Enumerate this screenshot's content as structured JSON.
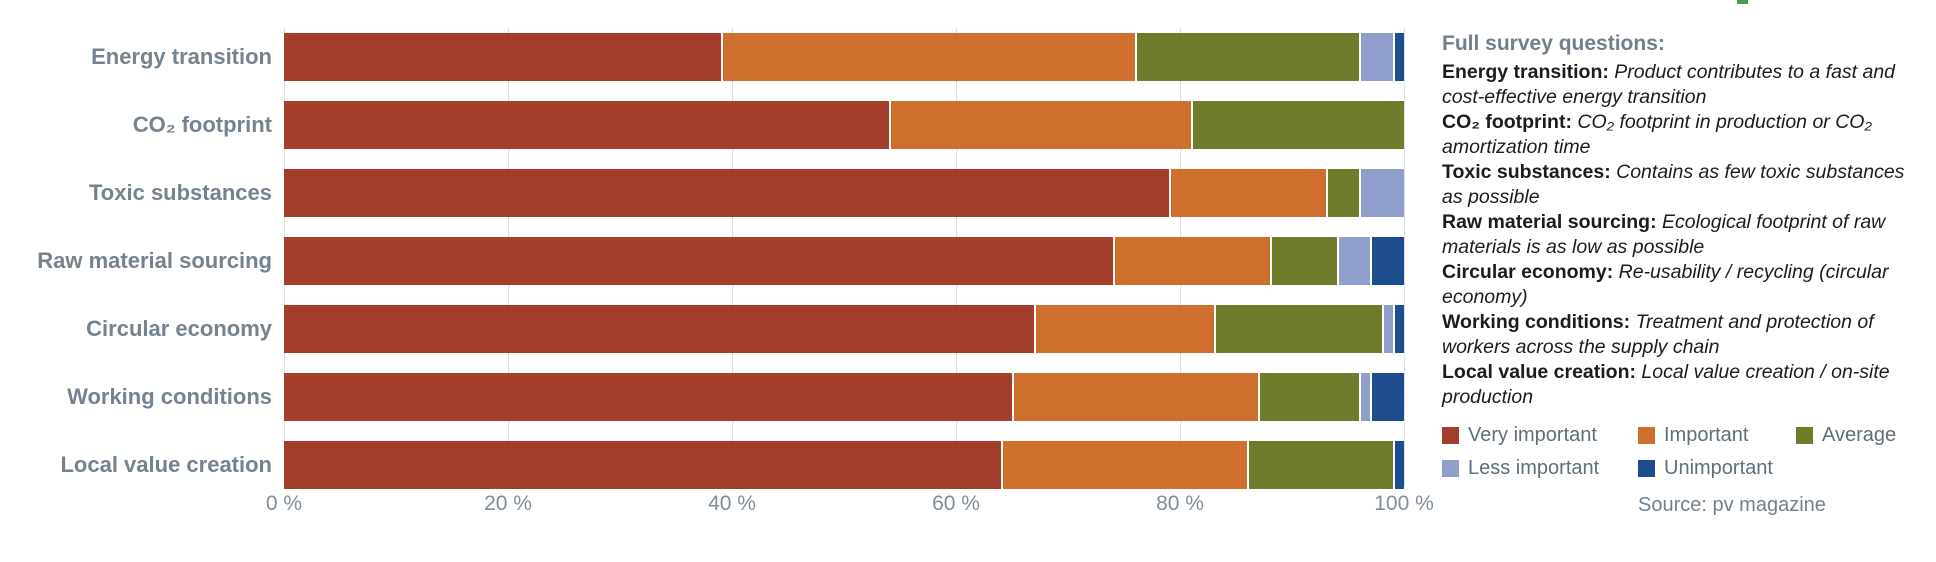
{
  "chart_data": {
    "type": "bar",
    "orientation": "horizontal-stacked",
    "title": "",
    "xlabel": "",
    "ylabel": "",
    "xlim": [
      0,
      100
    ],
    "grid": true,
    "x_ticks": [
      "0 %",
      "20 %",
      "40 %",
      "60 %",
      "80 %",
      "100 %"
    ],
    "categories": [
      "Energy transition",
      "CO₂ footprint",
      "Toxic substances",
      "Raw material sourcing",
      "Circular economy",
      "Working conditions",
      "Local value creation"
    ],
    "series": [
      {
        "name": "Very important",
        "color": "#a23e2b",
        "values": [
          39,
          54,
          79,
          74,
          67,
          65,
          64
        ]
      },
      {
        "name": "Important",
        "color": "#cf6f2e",
        "values": [
          37,
          27,
          14,
          14,
          16,
          22,
          22
        ]
      },
      {
        "name": "Average",
        "color": "#6e7c2b",
        "values": [
          20,
          19,
          3,
          6,
          15,
          9,
          13
        ]
      },
      {
        "name": "Less important",
        "color": "#8f9ecb",
        "values": [
          3,
          0,
          4,
          3,
          1,
          1,
          0
        ]
      },
      {
        "name": "Unimportant",
        "color": "#1e4d8e",
        "values": [
          1,
          0,
          0,
          3,
          1,
          3,
          1
        ]
      }
    ],
    "legend_position": "bottom-right"
  },
  "info_panel": {
    "heading": "Full survey questions:",
    "questions": [
      {
        "term": "Energy transition:",
        "desc": "Product contributes to a fast and cost-effective energy transition"
      },
      {
        "term": "CO₂ footprint:",
        "desc": "CO₂ footprint in production or CO₂ amortization time"
      },
      {
        "term": "Toxic substances:",
        "desc": "Contains as few toxic substances as possible"
      },
      {
        "term": "Raw material sourcing:",
        "desc": "Ecological footprint of raw materials is as low as possible"
      },
      {
        "term": "Circular economy:",
        "desc": "Re-usability / recycling (circular economy)"
      },
      {
        "term": "Working conditions:",
        "desc": "Treatment and protection of workers across the supply chain"
      },
      {
        "term": "Local value creation:",
        "desc": "Local value creation / on-site production"
      }
    ],
    "source": "Source: pv magazine"
  },
  "decor": {
    "green_dash_color": "#4a9b50"
  }
}
